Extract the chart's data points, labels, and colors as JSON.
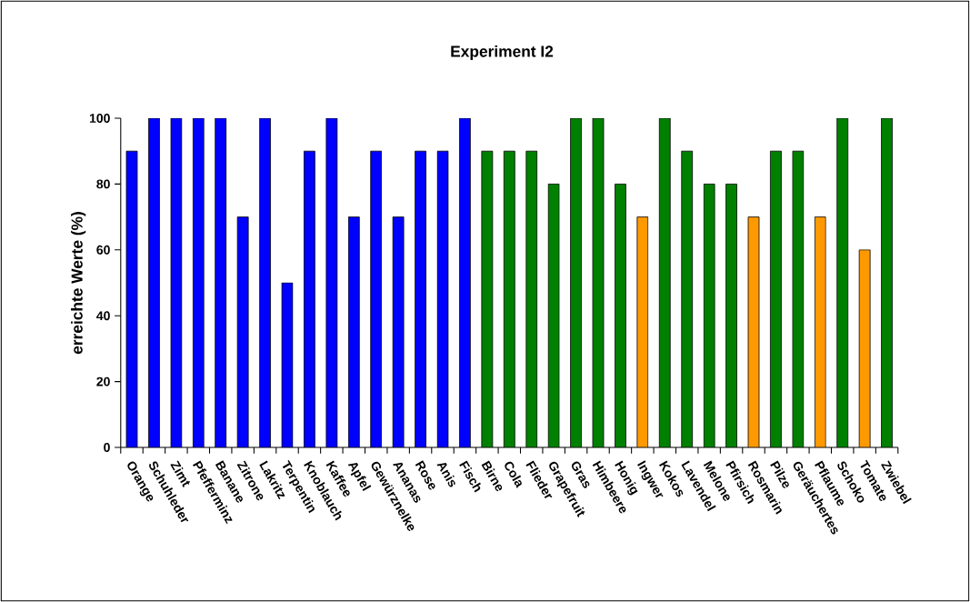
{
  "chart_data": {
    "type": "bar",
    "title": "Experiment I2",
    "ylabel": "erreichte Werte (%)",
    "categories": [
      "Orange",
      "Schuhleder",
      "Zimt",
      "Pfefferminz",
      "Banane",
      "Zitrone",
      "Lakritz",
      "Terpentin",
      "Knoblauch",
      "Kaffee",
      "Apfel",
      "Gewürznelke",
      "Ananas",
      "Rose",
      "Anis",
      "Fisch",
      "Birne",
      "Cola",
      "Flieder",
      "Grapefruit",
      "Gras",
      "Himbeere",
      "Honig",
      "Ingwer",
      "Kokos",
      "Lavendel",
      "Melone",
      "Pfirsich",
      "Rosmarin",
      "Pilze",
      "Geräuchertes",
      "Pflaume",
      "Schoko",
      "Tomate",
      "Zwiebel"
    ],
    "values": [
      90,
      100,
      100,
      100,
      100,
      70,
      100,
      50,
      90,
      100,
      70,
      90,
      70,
      90,
      90,
      100,
      90,
      90,
      90,
      80,
      100,
      100,
      80,
      70,
      100,
      90,
      80,
      80,
      70,
      90,
      90,
      70,
      100,
      60,
      100
    ],
    "colors": [
      "#0000ff",
      "#0000ff",
      "#0000ff",
      "#0000ff",
      "#0000ff",
      "#0000ff",
      "#0000ff",
      "#0000ff",
      "#0000ff",
      "#0000ff",
      "#0000ff",
      "#0000ff",
      "#0000ff",
      "#0000ff",
      "#0000ff",
      "#0000ff",
      "#008000",
      "#008000",
      "#008000",
      "#008000",
      "#008000",
      "#008000",
      "#008000",
      "#ff9900",
      "#008000",
      "#008000",
      "#008000",
      "#008000",
      "#ff9900",
      "#008000",
      "#008000",
      "#ff9900",
      "#008000",
      "#ff9900",
      "#008000"
    ],
    "ylim": [
      0,
      100
    ],
    "yticks": [
      0,
      20,
      40,
      60,
      80,
      100
    ],
    "grid": false
  }
}
